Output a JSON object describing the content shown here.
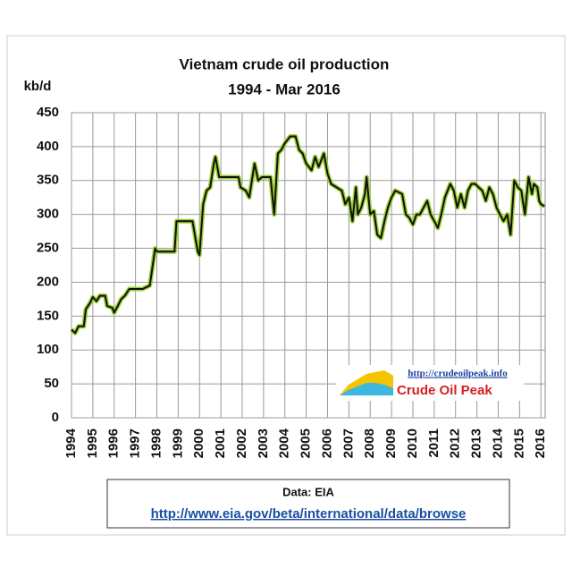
{
  "chart_data": {
    "type": "line",
    "title": [
      "Vietnam crude oil production",
      "1994 - Mar 2016"
    ],
    "y_label": "kb/d",
    "source": "Data: EIA",
    "source_link": "http://www.eia.gov/beta/international/data/browse",
    "logo": [
      "http://crudeoilpeak.info",
      "Crude Oil Peak"
    ],
    "xlim": [
      1994,
      2016.2
    ],
    "ylim": [
      0,
      450
    ],
    "xticks": [
      1994,
      1995,
      1996,
      1997,
      1998,
      1999,
      2000,
      2001,
      2002,
      2003,
      2004,
      2005,
      2006,
      2007,
      2008,
      2009,
      2010,
      2011,
      2012,
      2013,
      2014,
      2015,
      2016
    ],
    "yticks": [
      0,
      50,
      100,
      150,
      200,
      250,
      300,
      350,
      400,
      450
    ],
    "grid": true,
    "series": [
      {
        "color": "#111111",
        "glow": "#9acd32",
        "x": [
          1994.0,
          1994.17,
          1994.33,
          1994.58,
          1994.67,
          1994.88,
          1995.0,
          1995.17,
          1995.33,
          1995.58,
          1995.67,
          1995.92,
          1996.0,
          1996.17,
          1996.33,
          1996.5,
          1996.71,
          1997.33,
          1997.67,
          1997.92,
          1998.0,
          1998.83,
          1998.92,
          1999.67,
          1999.92,
          2000.0,
          2000.17,
          2000.33,
          2000.5,
          2000.67,
          2000.75,
          2000.92,
          2001.83,
          2001.92,
          2002.17,
          2002.33,
          2002.58,
          2002.75,
          2002.92,
          2003.33,
          2003.5,
          2003.67,
          2003.83,
          2004.0,
          2004.25,
          2004.5,
          2004.67,
          2004.83,
          2005.0,
          2005.25,
          2005.42,
          2005.58,
          2005.83,
          2006.0,
          2006.17,
          2006.42,
          2006.67,
          2006.83,
          2007.0,
          2007.17,
          2007.33,
          2007.42,
          2007.58,
          2007.75,
          2007.83,
          2008.0,
          2008.17,
          2008.33,
          2008.5,
          2008.67,
          2008.83,
          2009.0,
          2009.17,
          2009.5,
          2009.67,
          2009.83,
          2010.0,
          2010.17,
          2010.33,
          2010.5,
          2010.67,
          2010.83,
          2011.0,
          2011.17,
          2011.33,
          2011.5,
          2011.75,
          2011.92,
          2012.08,
          2012.25,
          2012.42,
          2012.58,
          2012.75,
          2012.92,
          2013.08,
          2013.25,
          2013.42,
          2013.58,
          2013.75,
          2013.92,
          2014.08,
          2014.25,
          2014.42,
          2014.58,
          2014.75,
          2014.92,
          2015.08,
          2015.25,
          2015.42,
          2015.58,
          2015.67,
          2015.83,
          2015.92,
          2016.0,
          2016.17
        ],
        "values": [
          130,
          125,
          135,
          135,
          160,
          170,
          178,
          172,
          180,
          180,
          165,
          162,
          155,
          165,
          175,
          180,
          190,
          190,
          195,
          250,
          245,
          245,
          290,
          290,
          245,
          240,
          315,
          335,
          340,
          375,
          385,
          355,
          355,
          340,
          335,
          325,
          375,
          350,
          355,
          355,
          300,
          390,
          395,
          405,
          415,
          415,
          395,
          390,
          375,
          365,
          385,
          370,
          390,
          360,
          345,
          340,
          335,
          315,
          325,
          290,
          340,
          300,
          310,
          330,
          355,
          300,
          305,
          270,
          265,
          290,
          310,
          325,
          335,
          330,
          300,
          295,
          285,
          300,
          300,
          310,
          320,
          300,
          290,
          280,
          300,
          325,
          345,
          335,
          310,
          330,
          310,
          335,
          345,
          345,
          340,
          335,
          320,
          340,
          330,
          310,
          300,
          290,
          300,
          270,
          350,
          340,
          335,
          300,
          355,
          330,
          345,
          340,
          320,
          315,
          312
        ]
      }
    ]
  }
}
